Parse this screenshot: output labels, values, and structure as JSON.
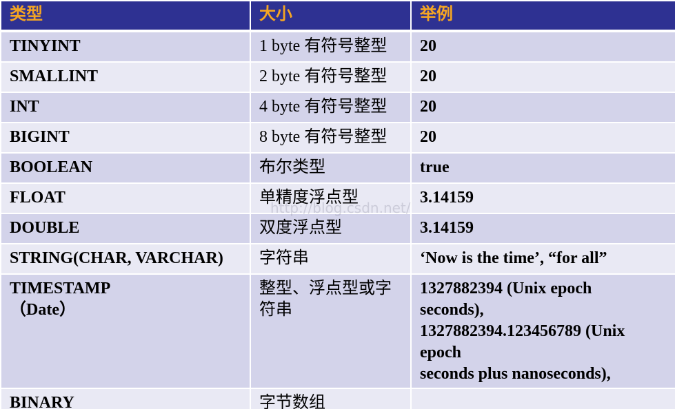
{
  "table": {
    "header": [
      "类型",
      "大小",
      "举例"
    ],
    "rows": [
      [
        "TINYINT",
        "1 byte 有符号整型",
        "20"
      ],
      [
        "SMALLINT",
        "2 byte 有符号整型",
        "20"
      ],
      [
        "INT",
        "4 byte 有符号整型",
        "20"
      ],
      [
        "BIGINT",
        "8 byte 有符号整型",
        "20"
      ],
      [
        "BOOLEAN",
        "布尔类型",
        "true"
      ],
      [
        "FLOAT",
        "单精度浮点型",
        "3.14159"
      ],
      [
        "DOUBLE",
        "双度浮点型",
        "3.14159"
      ],
      [
        "STRING(CHAR, VARCHAR)",
        "字符串",
        "‘Now is the time’, “for all”"
      ],
      [
        "TIMESTAMP\n（Date）",
        "整型、浮点型或字\n符串",
        "1327882394 (Unix epoch\nseconds),\n1327882394.123456789 (Unix\nepoch\nseconds plus nanoseconds),"
      ],
      [
        "BINARY",
        "字节数组"
      ]
    ]
  },
  "watermark": "http://blog.csdn.net/"
}
